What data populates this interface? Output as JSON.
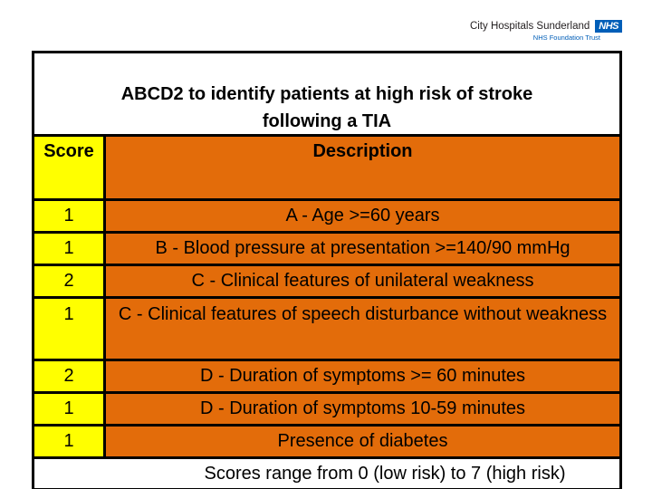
{
  "logo": {
    "org": "City Hospitals Sunderland",
    "nhs": "NHS",
    "trust": "NHS Foundation Trust"
  },
  "title": {
    "line1": "ABCD2 to identify patients at high risk of stroke",
    "line2": "following a TIA"
  },
  "table": {
    "headers": [
      "Score",
      "Description"
    ],
    "rows": [
      {
        "score": "1",
        "description": "A - Age >=60 years"
      },
      {
        "score": "1",
        "description": "B - Blood pressure at presentation >=140/90 mmHg"
      },
      {
        "score": "2",
        "description": "C - Clinical features of unilateral weakness"
      },
      {
        "score": "1",
        "description": "C - Clinical features of speech disturbance without weakness"
      },
      {
        "score": "2",
        "description": "D - Duration of symptoms >= 60 minutes"
      },
      {
        "score": "1",
        "description": "D - Duration of symptoms 10-59 minutes"
      },
      {
        "score": "1",
        "description": "Presence of diabetes"
      }
    ],
    "footer": "Scores range from 0 (low risk) to 7 (high risk)"
  },
  "colors": {
    "score_bg": "#FFFF00",
    "description_bg": "#E36C0A",
    "table_border": "#000000",
    "nhs_blue": "#005EB8"
  }
}
